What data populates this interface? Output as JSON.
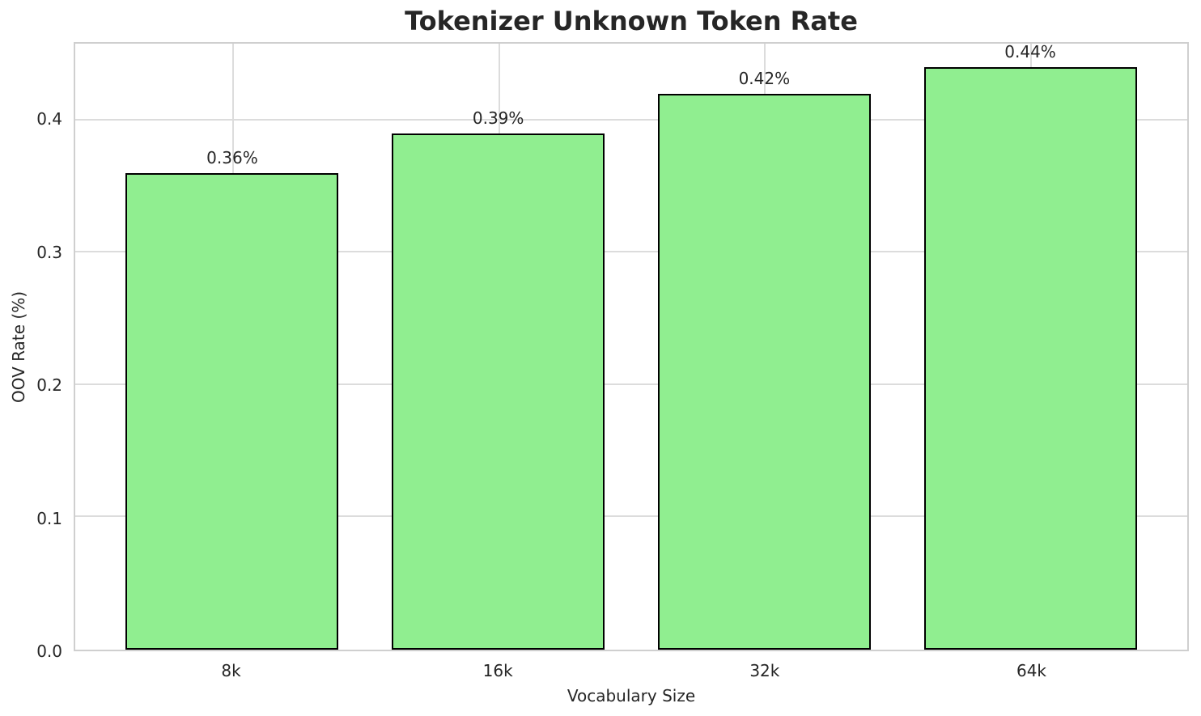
{
  "chart_data": {
    "type": "bar",
    "title": "Tokenizer Unknown Token Rate",
    "xlabel": "Vocabulary Size",
    "ylabel": "OOV Rate (%)",
    "categories": [
      "8k",
      "16k",
      "32k",
      "64k"
    ],
    "values": [
      0.36,
      0.39,
      0.42,
      0.44
    ],
    "bar_labels": [
      "0.36%",
      "0.39%",
      "0.42%",
      "0.44%"
    ],
    "yticks": [
      0.0,
      0.1,
      0.2,
      0.3,
      0.4
    ],
    "ytick_labels": [
      "0.0",
      "0.1",
      "0.2",
      "0.3",
      "0.4"
    ],
    "ylim": [
      0,
      0.458
    ],
    "xlim": [
      -0.59,
      3.59
    ],
    "bar_width_units": 0.8,
    "grid": true,
    "legend_position": "none",
    "colors": {
      "bar_fill": "#90EE90",
      "bar_edge": "#000000",
      "gridline": "#dcdcdc",
      "spine": "#cfcfcf",
      "text": "#262626",
      "background": "#ffffff"
    }
  }
}
